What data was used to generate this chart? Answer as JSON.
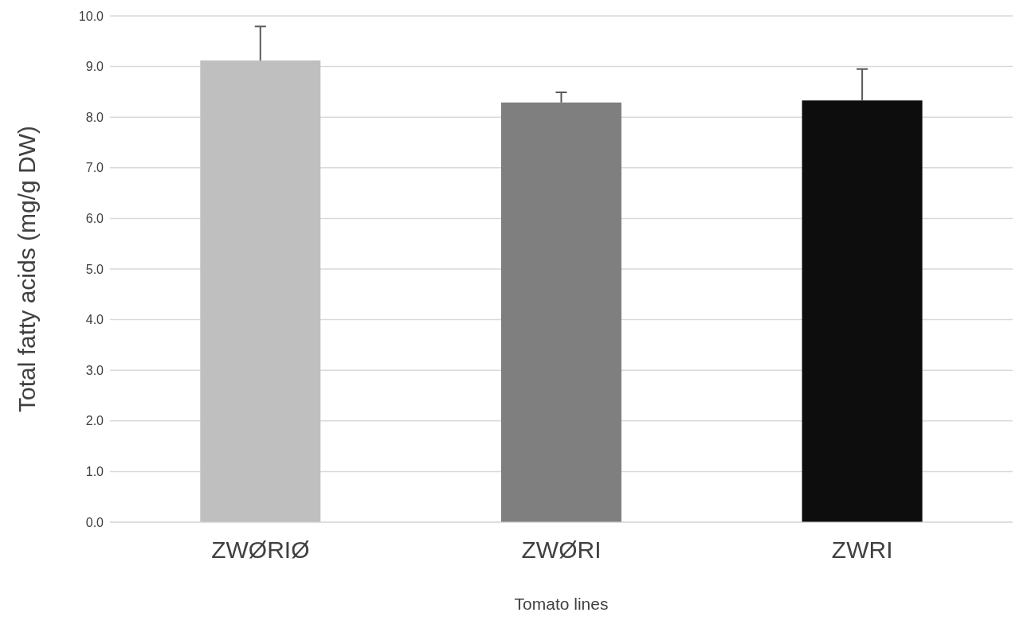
{
  "chart_data": {
    "type": "bar",
    "xlabel": "Tomato lines",
    "ylabel": "Total fatty acids (mg/g DW)",
    "categories": [
      "ZWØRIØ",
      "ZWØRI",
      "ZWRI"
    ],
    "values": [
      9.12,
      8.29,
      8.33
    ],
    "colors": [
      "#bfbfbf",
      "#7f7f7f",
      "#0d0d0d"
    ],
    "errors": [
      [
        9.12,
        9.79
      ],
      [
        8.29,
        8.49
      ],
      [
        8.33,
        8.95
      ]
    ],
    "ylim": [
      0,
      10
    ],
    "yticks": [
      {
        "value": 0,
        "label": "0.0"
      },
      {
        "value": 1,
        "label": "1.0"
      },
      {
        "value": 2,
        "label": "2.0"
      },
      {
        "value": 3,
        "label": "3.0"
      },
      {
        "value": 4,
        "label": "4.0"
      },
      {
        "value": 5,
        "label": "5.0"
      },
      {
        "value": 6,
        "label": "6.0"
      },
      {
        "value": 7,
        "label": "7.0"
      },
      {
        "value": 8,
        "label": "8.0"
      },
      {
        "value": 9,
        "label": "9.0"
      },
      {
        "value": 10,
        "label": "10.0"
      }
    ],
    "grid": "y"
  }
}
